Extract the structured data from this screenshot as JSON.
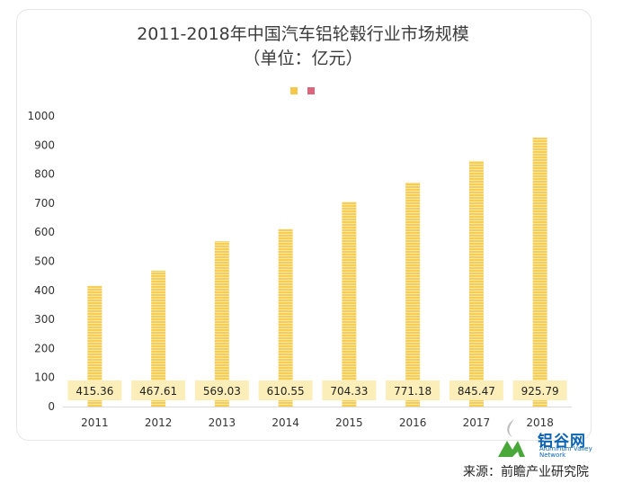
{
  "chart_data": {
    "type": "bar",
    "title_line1": "2011-2018年中国汽车铝轮毂行业市场规模",
    "title_line2": "（单位：亿元）",
    "categories": [
      "2011",
      "2012",
      "2013",
      "2014",
      "2015",
      "2016",
      "2017",
      "2018"
    ],
    "values": [
      415.36,
      467.61,
      569.03,
      610.55,
      704.33,
      771.18,
      845.47,
      925.79
    ],
    "data_labels": [
      "415.36",
      "467.61",
      "569.03",
      "610.55",
      "704.33",
      "771.18",
      "845.47",
      "925.79"
    ],
    "ylim": [
      0,
      1000
    ],
    "yticks": [
      "0",
      "100",
      "200",
      "300",
      "400",
      "500",
      "600",
      "700",
      "800",
      "900",
      "1000"
    ],
    "legend": [
      {
        "name": "",
        "color": "#f5c84a"
      },
      {
        "name": "",
        "color": "#d9667a"
      }
    ],
    "bar_color": "#f5c84a",
    "label_bg": "#fbeeb8"
  },
  "logo": {
    "zh": "铝谷网",
    "en_line1": "Aluminum Valley",
    "en_line2": "Network"
  },
  "source": "来源：前瞻产业研究院"
}
